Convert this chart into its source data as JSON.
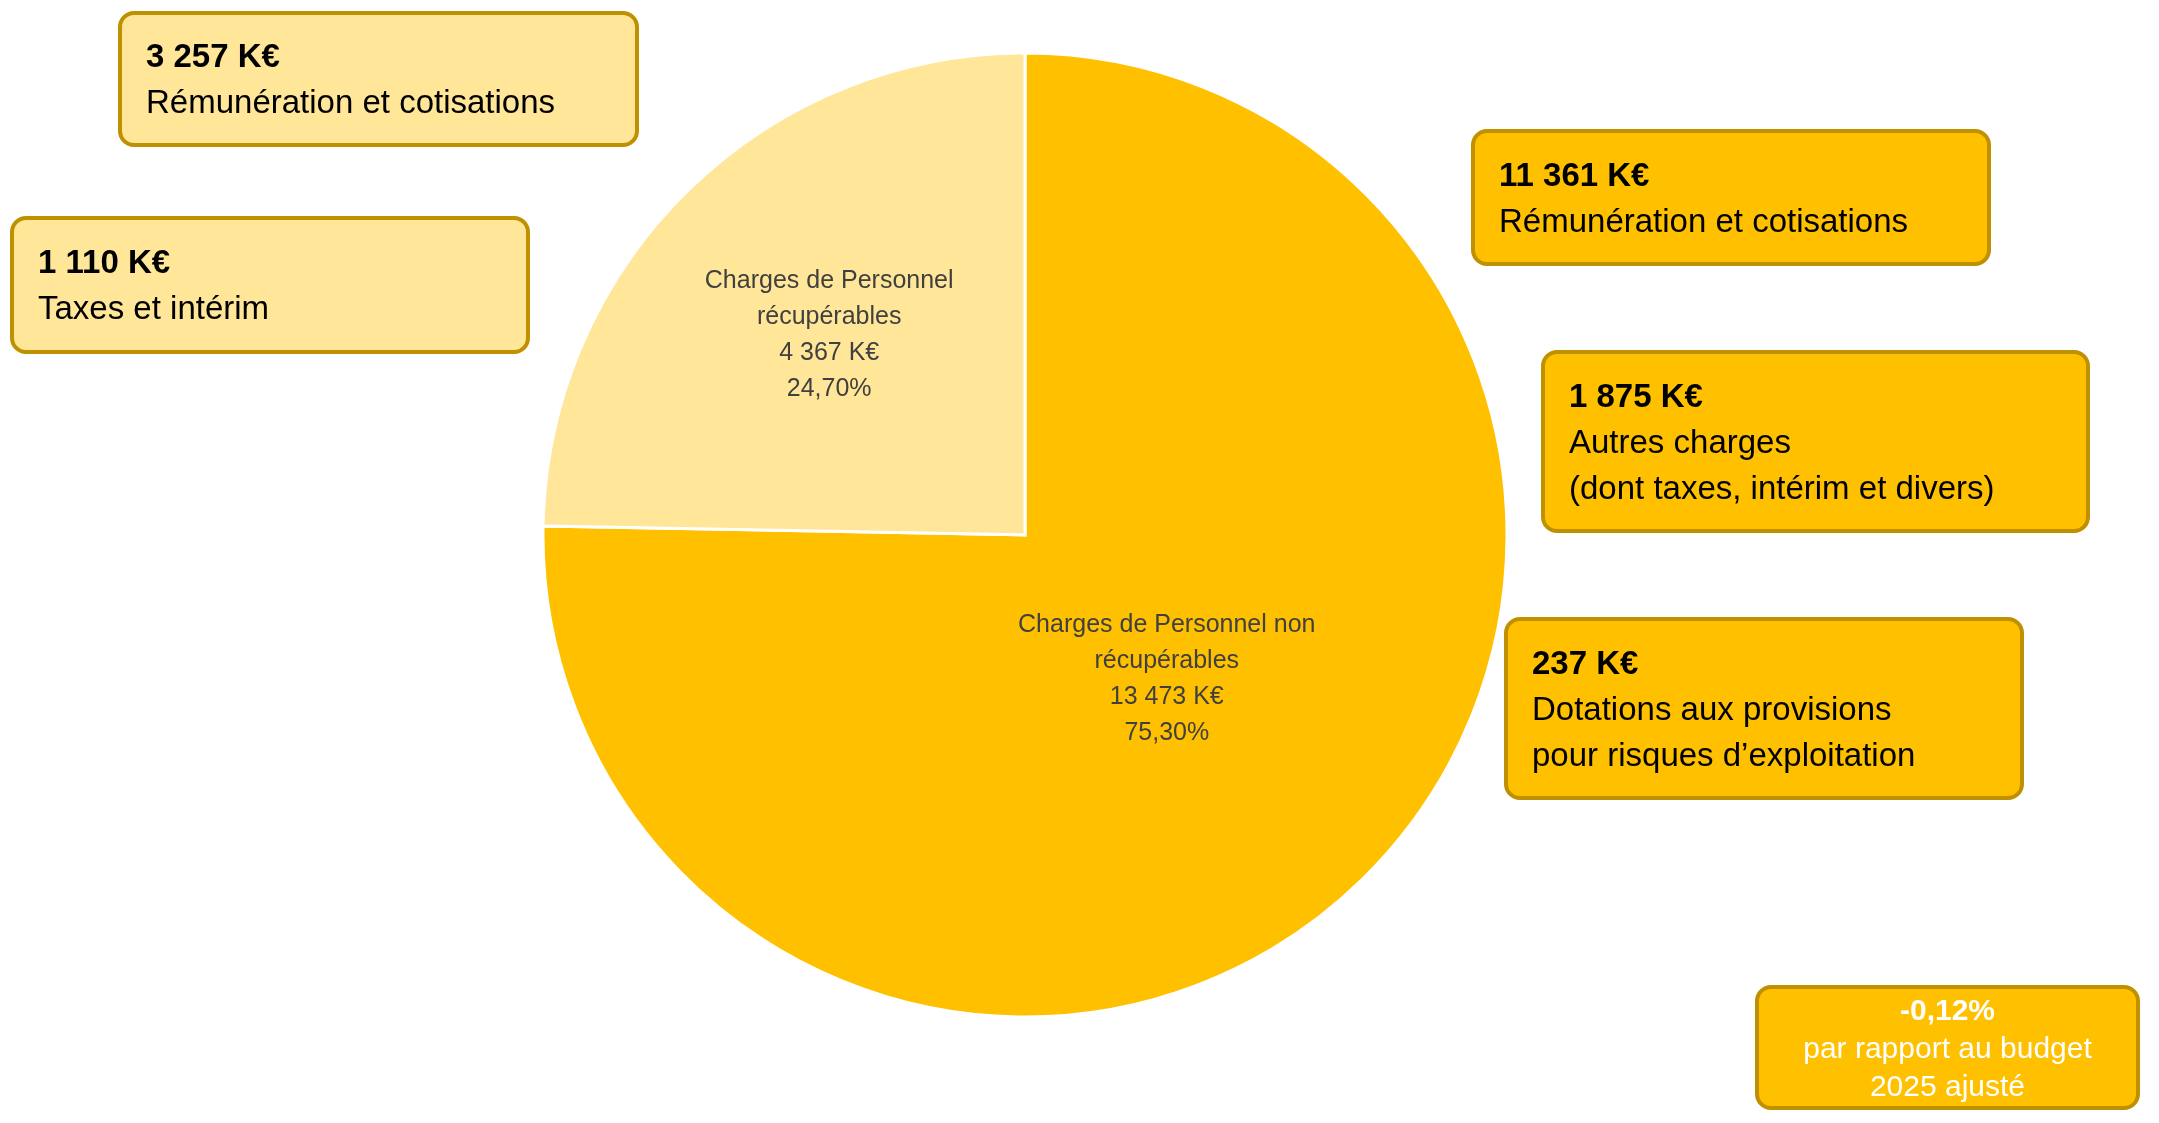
{
  "chart_data": {
    "type": "pie",
    "categories": [
      "Charges de Personnel non récupérables",
      "Charges de Personnel récupérables"
    ],
    "values": [
      75.3,
      24.7
    ],
    "colors": [
      "#ffc000",
      "#ffe699"
    ],
    "value_labels": [
      "13 473 K€\n75,30%",
      "4 367 K€\n24,70%"
    ],
    "annotations": [
      "3 257 K€\nRémunération et cotisations",
      "1 110 K€\nTaxes et intérim",
      "11 361 K€\nRémunération et cotisations",
      "1 875 K€\nAutres charges\n(dont taxes, intérim et divers)",
      "237 K€\nDotations aux provisions\npour risques d’exploitation",
      "-0,12%\npar rapport au budget\n2025 ajusté"
    ]
  }
}
